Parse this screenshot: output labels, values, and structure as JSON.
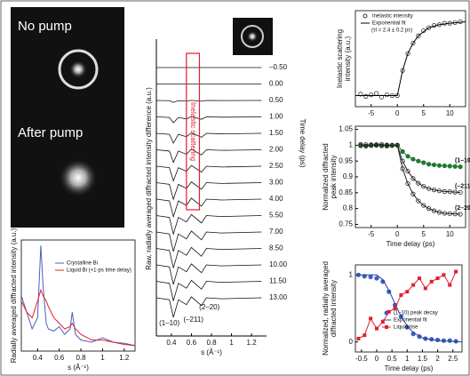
{
  "chart_data": [
    {
      "type": "image",
      "labels": [
        "No pump",
        "After pump"
      ]
    },
    {
      "type": "line",
      "ylabel": [
        "Radially averaged diffracted intensity (a.u.)"
      ],
      "xlabel": "s (Å⁻¹)",
      "xlim": [
        0.25,
        1.3
      ],
      "xticks": [
        0.4,
        0.6,
        0.8,
        1,
        1.2
      ],
      "ylim": [
        0,
        1
      ],
      "x": [
        0.25,
        0.3,
        0.35,
        0.4,
        0.43,
        0.45,
        0.48,
        0.5,
        0.55,
        0.6,
        0.65,
        0.7,
        0.72,
        0.75,
        0.8,
        0.9,
        1,
        1.1,
        1.2,
        1.3
      ],
      "series": [
        {
          "name": "Crystalline Bi",
          "color": "#4a5fc1",
          "mode": "line",
          "values": [
            0.5,
            0.35,
            0.2,
            0.3,
            0.95,
            0.6,
            0.25,
            0.2,
            0.18,
            0.22,
            0.15,
            0.2,
            0.35,
            0.15,
            0.1,
            0.08,
            0.12,
            0.08,
            0.07,
            0.05
          ]
        },
        {
          "name": "Liquid Bi (+1-ps time delay)",
          "color": "#e8202a",
          "mode": "line",
          "values": [
            0.45,
            0.35,
            0.3,
            0.45,
            0.55,
            0.5,
            0.45,
            0.4,
            0.3,
            0.25,
            0.2,
            0.22,
            0.25,
            0.2,
            0.15,
            0.1,
            0.1,
            0.08,
            0.06,
            0.05
          ]
        }
      ]
    },
    {
      "type": "waterfall",
      "ylabel": [
        "Raw, radially averaged diffracted intensity difference (a.u.)"
      ],
      "y2label": "Time delay (ps)",
      "xlabel": "s (Å⁻¹)",
      "xlim": [
        0.25,
        1.35
      ],
      "xticks": [
        0.4,
        0.6,
        0.8,
        1,
        1.2
      ],
      "box_label": "Inelastic scattering",
      "annotations": [
        "(1–10)",
        "(–211)",
        "(2–20)"
      ],
      "x": [
        0.25,
        0.38,
        0.42,
        0.47,
        0.55,
        0.6,
        0.7,
        0.75,
        0.9,
        1.3
      ],
      "series": [
        {
          "name": "–0.50",
          "values": [
            0,
            0,
            0,
            0,
            0,
            0,
            0,
            0,
            0,
            0
          ]
        },
        {
          "name": "0.00",
          "values": [
            0,
            0,
            0,
            0,
            0,
            0,
            0,
            0,
            0,
            0
          ]
        },
        {
          "name": "0.50",
          "values": [
            0,
            -0.1,
            -1,
            -0.1,
            -0.35,
            0.05,
            -0.4,
            0,
            -0.05,
            0
          ]
        },
        {
          "name": "1.00",
          "values": [
            0,
            -0.3,
            -3,
            -0.3,
            -1.05,
            0.15,
            -1.2,
            0,
            -0.15,
            0
          ]
        },
        {
          "name": "1.50",
          "values": [
            0,
            -0.5,
            -5,
            -0.5,
            -1.75,
            0.25,
            -2,
            0,
            -0.25,
            0
          ]
        },
        {
          "name": "2.00",
          "values": [
            0,
            -0.65,
            -6.5,
            -0.65,
            -2.3,
            0.3,
            -2.6,
            0,
            -0.3,
            0
          ]
        },
        {
          "name": "2.50",
          "values": [
            0,
            -0.75,
            -7.5,
            -0.75,
            -2.6,
            0.4,
            -3,
            0,
            -0.4,
            0
          ]
        },
        {
          "name": "3.00",
          "values": [
            0,
            -0.85,
            -8.5,
            -0.85,
            -3,
            0.4,
            -3.4,
            0,
            -0.4,
            0
          ]
        },
        {
          "name": "4.00",
          "values": [
            0,
            -0.9,
            -9,
            -0.9,
            -3.2,
            0.45,
            -3.6,
            0,
            -0.45,
            0
          ]
        },
        {
          "name": "5.50",
          "values": [
            0,
            -0.95,
            -9.5,
            -0.95,
            -3.3,
            0.5,
            -3.8,
            0,
            -0.5,
            0
          ]
        },
        {
          "name": "7.00",
          "values": [
            0,
            -1,
            -10,
            -1,
            -3.5,
            0.5,
            -4,
            0,
            -0.5,
            0
          ]
        },
        {
          "name": "8.50",
          "values": [
            0,
            -1,
            -10,
            -1,
            -3.5,
            0.5,
            -4,
            0,
            -0.5,
            0
          ]
        },
        {
          "name": "10.00",
          "values": [
            0,
            -1,
            -10,
            -1,
            -3.5,
            0.5,
            -4,
            0,
            -0.5,
            0
          ]
        },
        {
          "name": "11.50",
          "values": [
            0,
            -1,
            -10,
            -1,
            -3.5,
            0.5,
            -4,
            0,
            -0.5,
            0
          ]
        },
        {
          "name": "13.00",
          "values": [
            0,
            -1,
            -10,
            -1,
            -3.5,
            0.5,
            -4,
            0,
            -0.5,
            0
          ]
        }
      ]
    },
    {
      "type": "line",
      "ylabel": [
        "Inelastic scattering",
        "intensity (a.u.)"
      ],
      "annotation": "(τI = 2.4 ± 0.2 ps)",
      "xlim": [
        -8,
        13
      ],
      "xticks": [
        -5,
        0,
        5,
        10
      ],
      "ylim": [
        -0.15,
        1.15
      ],
      "series": [
        {
          "name": "Inelastic intensity",
          "color": "#333333",
          "mode": "markers",
          "marker": "open",
          "x": [
            -7,
            -6,
            -5,
            -4,
            -3,
            -2,
            -1,
            0,
            1,
            2,
            3,
            4,
            5,
            6,
            7,
            8,
            9,
            10,
            11,
            12
          ],
          "values": [
            0.02,
            -0.01,
            0.01,
            0.03,
            -0.02,
            0.01,
            0,
            0,
            0.34,
            0.57,
            0.71,
            0.81,
            0.88,
            0.92,
            0.95,
            0.96,
            0.98,
            0.98,
            0.99,
            1
          ]
        },
        {
          "name": "Exponential fit",
          "color": "#000000",
          "mode": "line",
          "x": [
            -8,
            0,
            1,
            2,
            3,
            4,
            6,
            8,
            10,
            13
          ],
          "values": [
            0,
            0,
            0.34,
            0.57,
            0.71,
            0.81,
            0.92,
            0.96,
            0.98,
            1
          ]
        }
      ]
    },
    {
      "type": "line",
      "ylabel": [
        "Normalized diffracted",
        "peak intensity"
      ],
      "xlabel": "Time delay (ps)",
      "xlim": [
        -8,
        13
      ],
      "xticks": [
        -5,
        0,
        5,
        10
      ],
      "ylim": [
        0.74,
        1.06
      ],
      "yticks": [
        0.75,
        0.8,
        0.85,
        0.9,
        0.95,
        1,
        1.05
      ],
      "curve_labels": true,
      "x": [
        -7,
        -6,
        -5,
        -4,
        -3,
        -2,
        -1,
        0,
        1,
        2,
        3,
        4,
        5,
        6,
        7,
        8,
        9,
        10,
        11,
        12
      ],
      "series": [
        {
          "name": "(1–10)",
          "color": "#1f7a2e",
          "mode": "line+markers",
          "marker": "filled",
          "values": [
            1,
            0.998,
            1.002,
            1,
            0.999,
            1.001,
            1,
            1,
            0.98,
            0.965,
            0.956,
            0.95,
            0.945,
            0.94,
            0.938,
            0.936,
            0.935,
            0.934,
            0.933,
            0.932
          ]
        },
        {
          "name": "(–211)",
          "color": "#222222",
          "mode": "line+markers",
          "marker": "open",
          "values": [
            1.003,
            0.997,
            1,
            1.002,
            0.998,
            1,
            0.999,
            1,
            0.95,
            0.918,
            0.895,
            0.88,
            0.87,
            0.863,
            0.859,
            0.856,
            0.854,
            0.853,
            0.852,
            0.851
          ]
        },
        {
          "name": "(2–20)",
          "color": "#222222",
          "mode": "line+markers",
          "marker": "open",
          "values": [
            0.998,
            1.002,
            0.999,
            1,
            1.003,
            0.997,
            1,
            1,
            0.926,
            0.879,
            0.846,
            0.824,
            0.81,
            0.8,
            0.793,
            0.788,
            0.785,
            0.784,
            0.783,
            0.782
          ]
        }
      ]
    },
    {
      "type": "line",
      "ylabel": [
        "Normalized, radially averaged",
        "diffracted intensity"
      ],
      "xlabel": "Time delay (ps)",
      "xlim": [
        -0.7,
        2.8
      ],
      "xticks": [
        -0.5,
        0,
        0.5,
        1,
        1.5,
        2,
        2.5
      ],
      "ylim": [
        -0.15,
        1.15
      ],
      "yticks": [
        0,
        1
      ],
      "series": [
        {
          "name": "(1–10) peak decay",
          "color": "#3b5fc8",
          "mode": "markers",
          "marker": "filled",
          "x": [
            -0.6,
            -0.4,
            -0.2,
            0,
            0.2,
            0.4,
            0.6,
            0.8,
            1,
            1.2,
            1.4,
            1.6,
            1.8,
            2,
            2.2,
            2.4,
            2.6
          ],
          "values": [
            1,
            0.98,
            0.97,
            0.95,
            0.9,
            0.75,
            0.55,
            0.38,
            0.22,
            0.12,
            0.08,
            0.05,
            0.04,
            0.03,
            0.02,
            0.02,
            0.01
          ]
        },
        {
          "name": "Exponential fit",
          "color": "#2a3f8f",
          "mode": "line",
          "x": [
            -0.7,
            0,
            0.2,
            0.4,
            0.6,
            0.8,
            1,
            1.2,
            1.5,
            2,
            2.8
          ],
          "values": [
            1,
            1,
            0.93,
            0.77,
            0.57,
            0.38,
            0.24,
            0.14,
            0.06,
            0.02,
            0
          ]
        },
        {
          "name": "Liquid rise",
          "color": "#e02030",
          "mode": "line+markers",
          "marker": "square",
          "x": [
            -0.6,
            -0.4,
            -0.2,
            0,
            0.2,
            0.4,
            0.6,
            0.8,
            1,
            1.2,
            1.4,
            1.6,
            1.8,
            2,
            2.2,
            2.4,
            2.6
          ],
          "values": [
            0.05,
            0.1,
            0.35,
            0.2,
            0.3,
            0.45,
            0.5,
            0.7,
            0.75,
            0.85,
            0.95,
            0.8,
            0.9,
            0.95,
            1,
            0.85,
            1.05
          ]
        }
      ]
    }
  ]
}
